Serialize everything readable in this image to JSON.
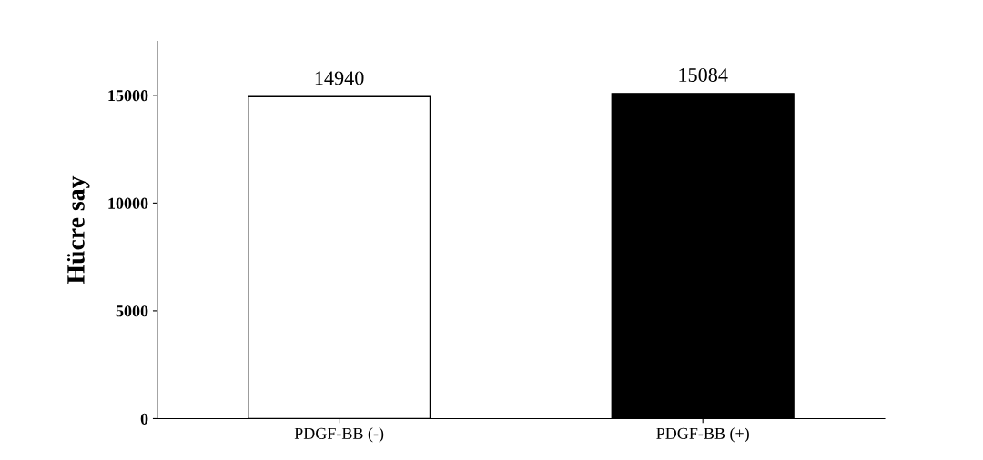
{
  "chart_data": {
    "type": "bar",
    "ylabel": "Hücre say",
    "categories": [
      "PDGF-BB (-)",
      "PDGF-BB (+)"
    ],
    "values": [
      14940,
      15084
    ],
    "colors": [
      "#ffffff",
      "#000000"
    ],
    "ylim": [
      0,
      17500
    ],
    "yticks": [
      0,
      5000,
      10000,
      15000
    ],
    "data_labels": true,
    "grid": false
  }
}
